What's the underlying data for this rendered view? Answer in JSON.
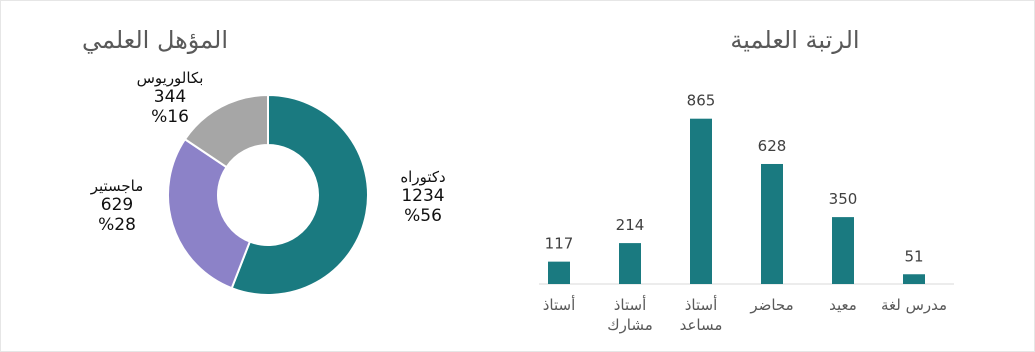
{
  "charts": {
    "qualification": {
      "title": "المؤهل العلمي",
      "colors": {
        "دكتوراه": "#1a7a80",
        "ماجستير": "#8c82c8",
        "بكالوريوس": "#a6a6a6"
      },
      "labels": [
        {
          "name": "دكتوراه",
          "value": "1234",
          "pct": "%56"
        },
        {
          "name": "ماجستير",
          "value": "629",
          "pct": "%28"
        },
        {
          "name": "بكالوريوس",
          "value": "344",
          "pct": "%16"
        }
      ]
    },
    "rank": {
      "title": "الرتبة العلمية",
      "bar_color": "#1a7a80"
    }
  },
  "chart_data": [
    {
      "type": "pie",
      "title": "المؤهل العلمي",
      "donut": true,
      "slices": [
        {
          "label": "دكتوراه",
          "value": 1234,
          "percent": 56
        },
        {
          "label": "ماجستير",
          "value": 629,
          "percent": 28
        },
        {
          "label": "بكالوريوس",
          "value": 344,
          "percent": 16
        }
      ]
    },
    {
      "type": "bar",
      "title": "الرتبة العلمية",
      "categories": [
        "أستاذ",
        "أستاذ مشارك",
        "أستاذ مساعد",
        "محاضر",
        "معيد",
        "مدرس لغة"
      ],
      "category_lines": [
        [
          "أستاذ"
        ],
        [
          "أستاذ",
          "مشارك"
        ],
        [
          "أستاذ",
          "مساعد"
        ],
        [
          "محاضر"
        ],
        [
          "معيد"
        ],
        [
          "مدرس لغة"
        ]
      ],
      "values": [
        117,
        214,
        865,
        628,
        350,
        51
      ],
      "ylim": [
        0,
        900
      ],
      "grid": false,
      "data_labels": true
    }
  ]
}
